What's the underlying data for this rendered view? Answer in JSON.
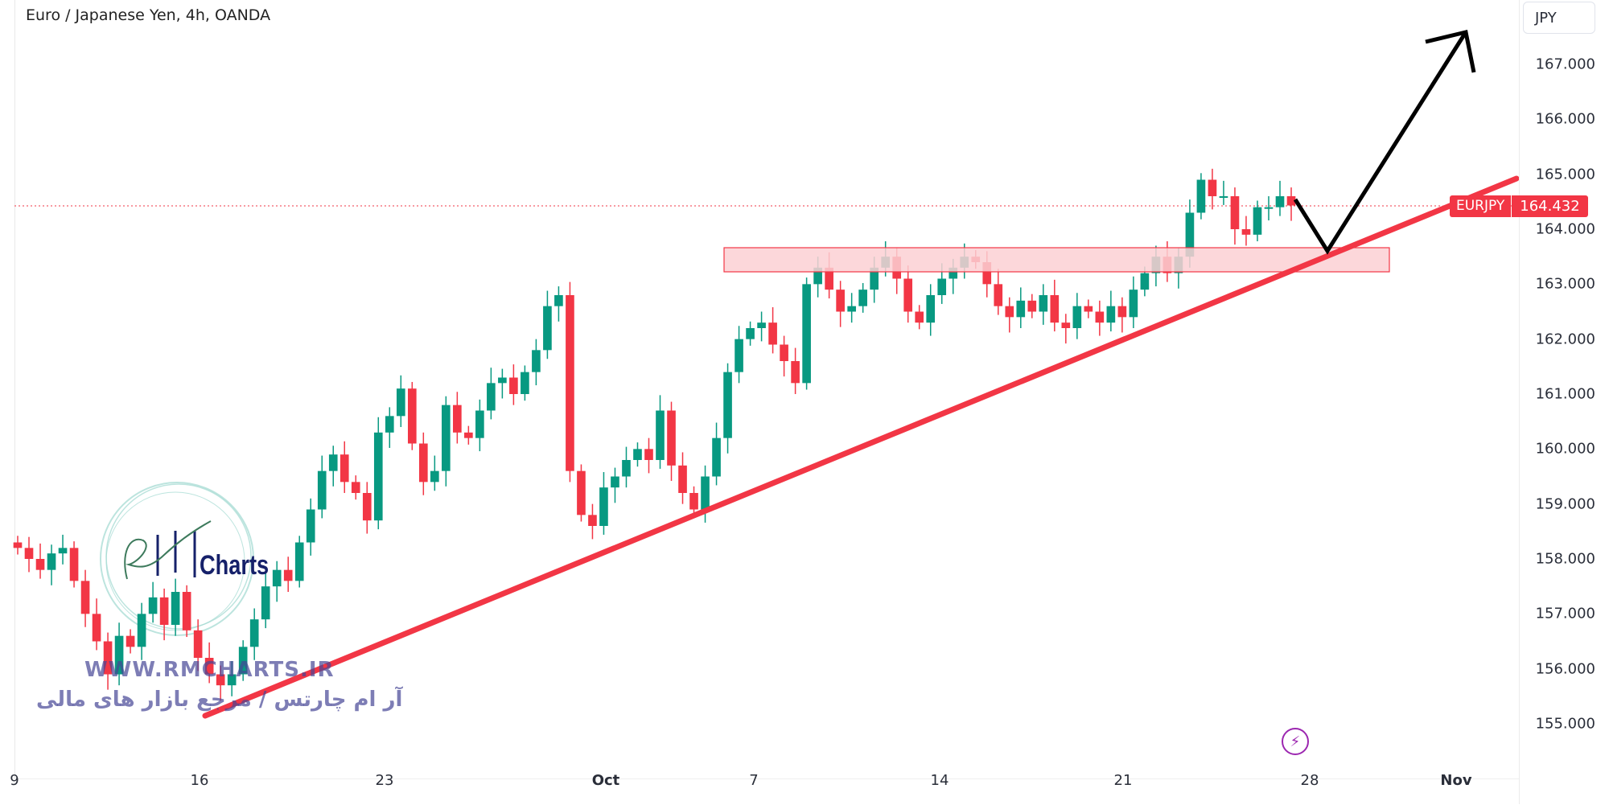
{
  "header": {
    "title": "Euro / Japanese Yen, 4h, OANDA"
  },
  "currency_button": {
    "label": "JPY"
  },
  "price_tag": {
    "symbol": "EURJPY",
    "value": "164.432"
  },
  "colors": {
    "up": "#089981",
    "down": "#f23645",
    "trendline": "#f23645",
    "zone_fill": "#fbd0d4",
    "zone_border": "#f23645",
    "arrow": "#000000",
    "bolt": "#9c27b0"
  },
  "watermark": {
    "url": "WWW.RMCHARTS.IR",
    "farsi": "آر ام چارتس / مرجع بازار های مالی",
    "logo_text": "Charts"
  },
  "icons": {
    "bolt": "⚡"
  },
  "chart_data": {
    "type": "candlestick",
    "title": "Euro / Japanese Yen, 4h, OANDA",
    "symbol": "EURJPY",
    "timeframe": "4h",
    "last_price": 164.432,
    "ylabel": "JPY",
    "ylim": [
      154.5,
      167.8
    ],
    "y_ticks": [
      "167.000",
      "166.000",
      "165.000",
      "164.000",
      "163.000",
      "162.000",
      "161.000",
      "160.000",
      "159.000",
      "158.000",
      "157.000",
      "156.000",
      "155.000"
    ],
    "x_ticks": [
      "9",
      "16",
      "23",
      "Oct",
      "7",
      "14",
      "21",
      "28",
      "Nov"
    ],
    "annotations": {
      "trendline": {
        "from": {
          "date": "16",
          "price": 155.1
        },
        "to": {
          "date": "after 28",
          "price": 164.9
        }
      },
      "resistance_zone": {
        "top": 163.7,
        "bottom": 163.25,
        "from": "Oct 6",
        "to": "Oct 29"
      },
      "projection_arrow": {
        "points": [
          164.4,
          163.6,
          167.5
        ],
        "direction": "up"
      }
    },
    "candles_close_approx": [
      158.2,
      158.0,
      157.8,
      158.1,
      158.2,
      157.6,
      157.0,
      156.5,
      155.9,
      156.6,
      156.4,
      157.0,
      157.3,
      156.8,
      157.4,
      156.7,
      156.2,
      155.9,
      155.7,
      155.9,
      156.4,
      156.9,
      157.5,
      157.8,
      157.6,
      158.3,
      158.9,
      159.6,
      159.9,
      159.4,
      159.2,
      158.7,
      160.3,
      160.6,
      161.1,
      160.1,
      159.4,
      159.6,
      160.8,
      160.3,
      160.2,
      160.7,
      161.2,
      161.3,
      161.0,
      161.4,
      161.8,
      162.6,
      162.8,
      159.6,
      158.8,
      158.6,
      159.3,
      159.5,
      159.8,
      160.0,
      159.8,
      160.7,
      159.7,
      159.2,
      158.9,
      159.5,
      160.2,
      161.4,
      162.0,
      162.2,
      162.3,
      161.9,
      161.6,
      161.2,
      163.0,
      163.3,
      162.9,
      162.5,
      162.6,
      162.9,
      163.3,
      163.5,
      163.1,
      162.5,
      162.3,
      162.8,
      163.1,
      163.3,
      163.5,
      163.4,
      163.0,
      162.6,
      162.4,
      162.7,
      162.5,
      162.8,
      162.3,
      162.2,
      162.6,
      162.5,
      162.3,
      162.6,
      162.4,
      162.9,
      163.2,
      163.5,
      163.2,
      163.5,
      164.3,
      164.9,
      164.6,
      164.6,
      164.0,
      163.9,
      164.4,
      164.4,
      164.6,
      164.432
    ]
  }
}
